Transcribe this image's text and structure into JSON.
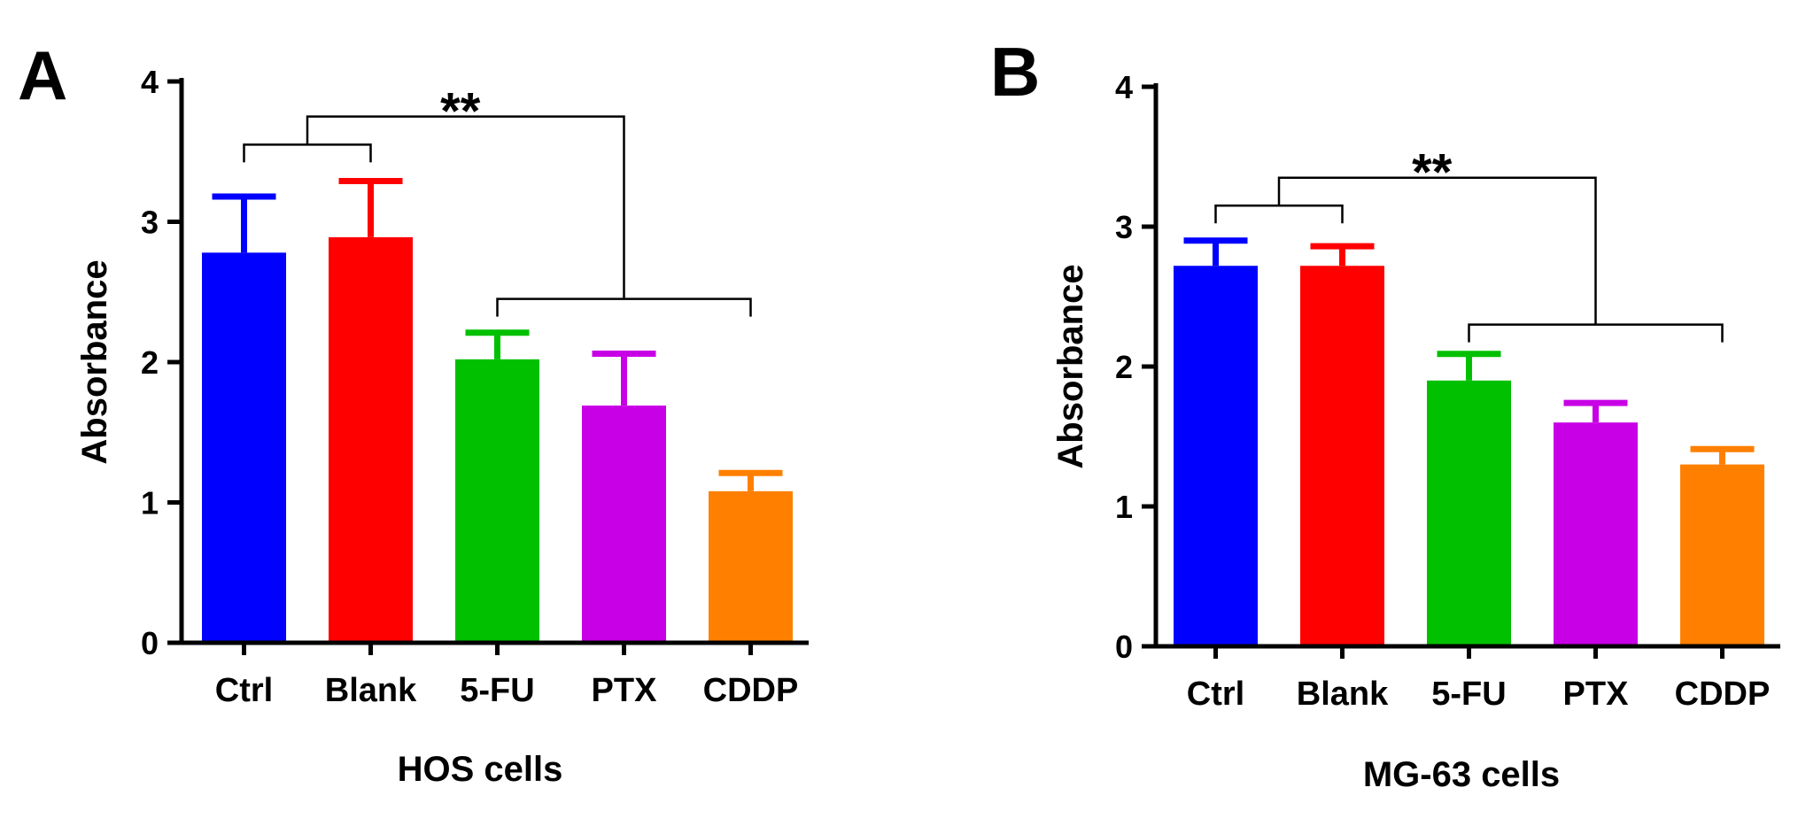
{
  "chart_data": [
    {
      "type": "bar",
      "panel_label": "A",
      "title": "",
      "xlabel": "HOS cells",
      "ylabel": "Absorbance",
      "ylim": [
        0,
        4
      ],
      "yticks": [
        "0",
        "1",
        "2",
        "3",
        "4"
      ],
      "categories": [
        "Ctrl",
        "Blank",
        "5-FU",
        "PTX",
        "CDDP"
      ],
      "values": [
        2.78,
        2.89,
        2.02,
        1.69,
        1.08
      ],
      "errors": [
        0.4,
        0.4,
        0.19,
        0.37,
        0.13
      ],
      "colors": [
        "#0000ff",
        "#ff0000",
        "#00c000",
        "#c800e6",
        "#ff8000"
      ],
      "significance": {
        "label": "**",
        "group1": [
          "Ctrl",
          "Blank"
        ],
        "group2": [
          "5-FU",
          "CDDP"
        ],
        "bracket1_y": 3.55,
        "bracket2_y": 2.45,
        "top_y": 3.75
      }
    },
    {
      "type": "bar",
      "panel_label": "B",
      "title": "",
      "xlabel": "MG-63 cells",
      "ylabel": "Absorbance",
      "ylim": [
        0,
        4
      ],
      "yticks": [
        "0",
        "1",
        "2",
        "3",
        "4"
      ],
      "categories": [
        "Ctrl",
        "Blank",
        "5-FU",
        "PTX",
        "CDDP"
      ],
      "values": [
        2.72,
        2.72,
        1.9,
        1.6,
        1.3
      ],
      "errors": [
        0.18,
        0.14,
        0.19,
        0.14,
        0.11
      ],
      "colors": [
        "#0000ff",
        "#ff0000",
        "#00c000",
        "#c800e6",
        "#ff8000"
      ],
      "significance": {
        "label": "**",
        "group1": [
          "Ctrl",
          "Blank"
        ],
        "group2": [
          "5-FU",
          "CDDP"
        ],
        "bracket1_y": 3.15,
        "bracket2_y": 2.3,
        "top_y": 3.35
      }
    }
  ]
}
